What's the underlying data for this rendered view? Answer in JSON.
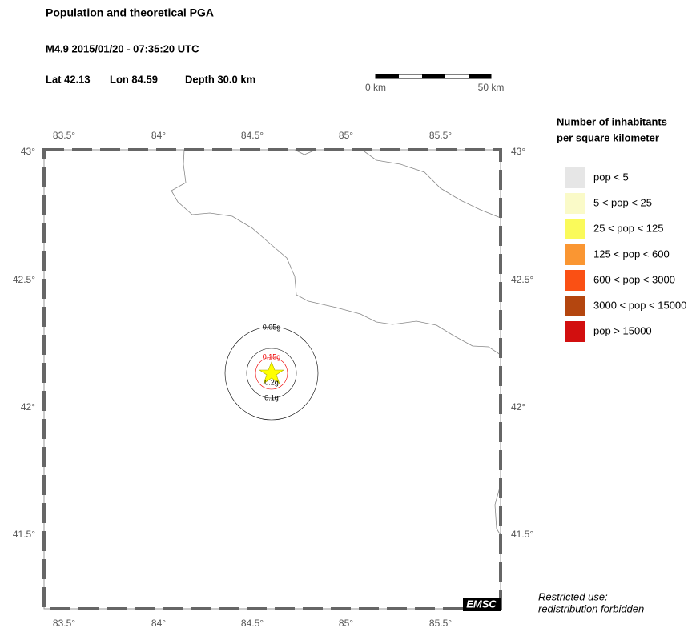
{
  "header": {
    "title": "Population and theoretical PGA",
    "event": "M4.9  2015/01/20 - 07:35:20 UTC",
    "lat": "Lat 42.13",
    "lon": "Lon  84.59",
    "depth": "Depth  30.0 km"
  },
  "scale_bar": {
    "start": "0 km",
    "end": "50 km"
  },
  "map": {
    "lon_labels": [
      "83.5°",
      "84°",
      "84.5°",
      "85°",
      "85.5°"
    ],
    "lat_labels": [
      "43°",
      "42.5°",
      "42°",
      "41.5°"
    ],
    "contours": [
      "0.05g",
      "0.15g",
      "0.2g",
      "0.1g"
    ],
    "logo": "EMSC"
  },
  "legend": {
    "title": [
      "Number of inhabitants",
      "per square kilometer"
    ],
    "items": [
      {
        "label": "pop < 5",
        "color": "#e6e6e6"
      },
      {
        "label": "5 < pop < 25",
        "color": "#fafac8"
      },
      {
        "label": "25 < pop < 125",
        "color": "#fafa5a"
      },
      {
        "label": "125 < pop < 600",
        "color": "#fa9632"
      },
      {
        "label": "600 < pop < 3000",
        "color": "#fa5014"
      },
      {
        "label": "3000 < pop < 15000",
        "color": "#b4460f"
      },
      {
        "label": "pop > 15000",
        "color": "#d20f0f"
      }
    ]
  },
  "note": [
    "Restricted use:",
    "redistribution forbidden"
  ]
}
